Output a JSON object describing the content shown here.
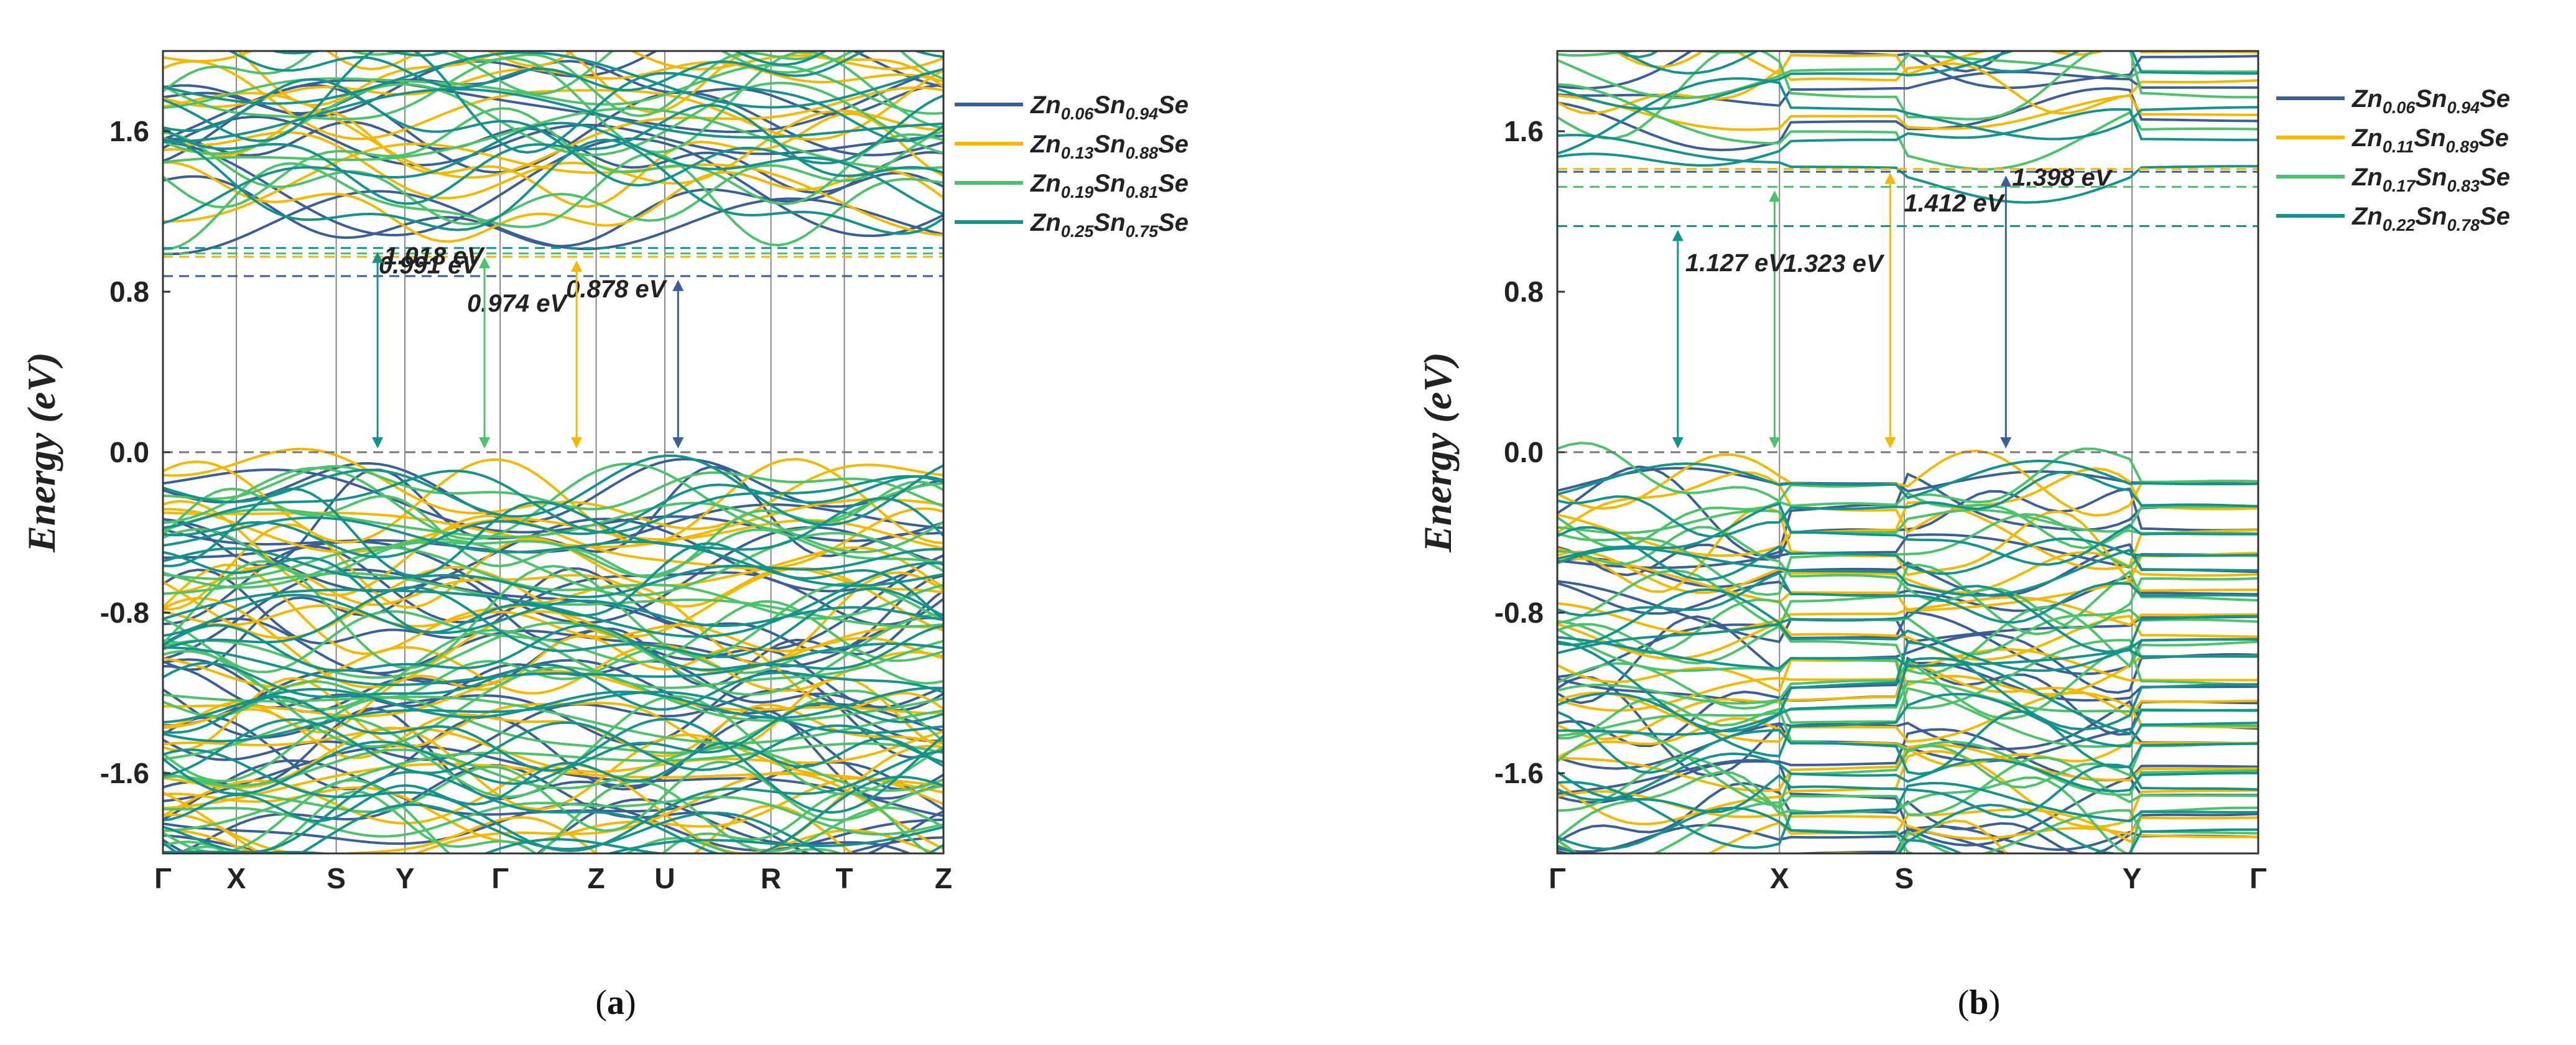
{
  "chart_data": [
    {
      "type": "line",
      "title": "",
      "caption": "(a)",
      "ylabel": "Energy (eV)",
      "ylim": [
        -2.0,
        2.0
      ],
      "yticks": [
        "1.6",
        "0.8",
        "0.0",
        "-0.8",
        "-1.6"
      ],
      "ytick_values": [
        1.6,
        0.8,
        0.0,
        -0.8,
        -1.6
      ],
      "kpoints": [
        "Γ",
        "X",
        "S",
        "Y",
        "Γ",
        "Z",
        "U",
        "R",
        "T",
        "Z"
      ],
      "kpoint_positions": [
        0,
        0.094,
        0.222,
        0.31,
        0.432,
        0.555,
        0.643,
        0.779,
        0.873,
        1.0
      ],
      "fermi_level": 0.0,
      "series": [
        {
          "name": "Zn0.06Sn0.94Se",
          "formula": [
            "Zn",
            "0.06",
            "Sn",
            "0.94",
            "Se"
          ],
          "color": "#3a5f96",
          "cbm": 0.878,
          "band_gap_label": "0.878 eV",
          "arrow_k": 0.66
        },
        {
          "name": "Zn0.13Sn0.88Se",
          "formula": [
            "Zn",
            "0.13",
            "Sn",
            "0.88",
            "Se"
          ],
          "color": "#f5b800",
          "cbm": 0.974,
          "band_gap_label": "0.974 eV",
          "arrow_k": 0.53
        },
        {
          "name": "Zn0.19Sn0.81Se",
          "formula": [
            "Zn",
            "0.19",
            "Sn",
            "0.81",
            "Se"
          ],
          "color": "#4cc36a",
          "cbm": 0.991,
          "band_gap_label": "0.991 eV",
          "arrow_k": 0.412
        },
        {
          "name": "Zn0.25Sn0.75Se",
          "formula": [
            "Zn",
            "0.25",
            "Sn",
            "0.75",
            "Se"
          ],
          "color": "#14938c",
          "cbm": 1.018,
          "band_gap_label": "1.018 eV",
          "arrow_k": 0.275
        }
      ]
    },
    {
      "type": "line",
      "title": "",
      "caption": "(b)",
      "ylabel": "Energy (eV)",
      "ylim": [
        -2.0,
        2.0
      ],
      "yticks": [
        "1.6",
        "0.8",
        "0.0",
        "-0.8",
        "-1.6"
      ],
      "ytick_values": [
        1.6,
        0.8,
        0.0,
        -0.8,
        -1.6
      ],
      "kpoints": [
        "Γ",
        "X",
        "S",
        "Y",
        "Γ"
      ],
      "kpoint_positions": [
        0,
        0.317,
        0.495,
        0.82,
        1.0
      ],
      "fermi_level": 0.0,
      "series": [
        {
          "name": "Zn0.06Sn0.94Se",
          "formula": [
            "Zn",
            "0.06",
            "Sn",
            "0.94",
            "Se"
          ],
          "color": "#3a5f96",
          "cbm": 1.398,
          "band_gap_label": "1.398 eV",
          "arrow_k": 0.64
        },
        {
          "name": "Zn0.11Sn0.89Se",
          "formula": [
            "Zn",
            "0.11",
            "Sn",
            "0.89",
            "Se"
          ],
          "color": "#f5b800",
          "cbm": 1.412,
          "band_gap_label": "1.412 eV",
          "arrow_k": 0.475
        },
        {
          "name": "Zn0.17Sn0.83Se",
          "formula": [
            "Zn",
            "0.17",
            "Sn",
            "0.83",
            "Se"
          ],
          "color": "#4cc36a",
          "cbm": 1.323,
          "band_gap_label": "1.323 eV",
          "arrow_k": 0.31
        },
        {
          "name": "Zn0.22Sn0.78Se",
          "formula": [
            "Zn",
            "0.22",
            "Sn",
            "0.78",
            "Se"
          ],
          "color": "#14938c",
          "cbm": 1.127,
          "band_gap_label": "1.127 eV",
          "arrow_k": 0.172
        }
      ]
    }
  ]
}
